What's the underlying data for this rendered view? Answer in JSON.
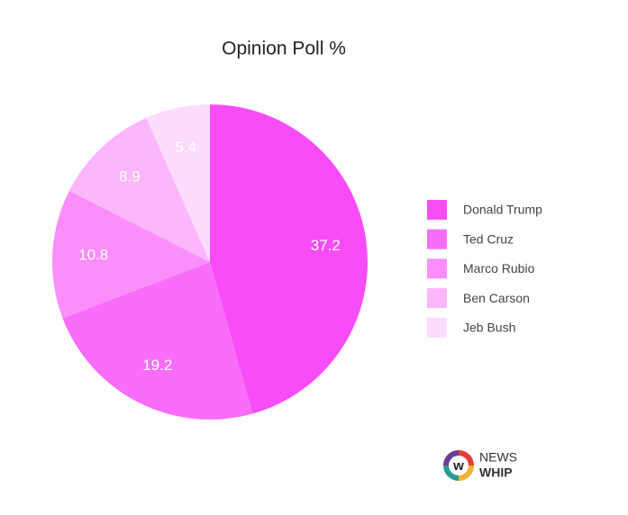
{
  "chart_data": {
    "type": "pie",
    "title": "Opinion Poll %",
    "categories": [
      "Donald Trump",
      "Ted Cruz",
      "Marco Rubio",
      "Ben Carson",
      "Jeb Bush"
    ],
    "values": [
      37.2,
      19.2,
      10.8,
      8.9,
      5.4
    ],
    "colors": [
      "#f94cf9",
      "#fa6dfa",
      "#fb8efb",
      "#fcb6fc",
      "#fddbfd"
    ],
    "legend": "right"
  },
  "logo": {
    "line1": "NEWS",
    "line2": "WHIP"
  }
}
